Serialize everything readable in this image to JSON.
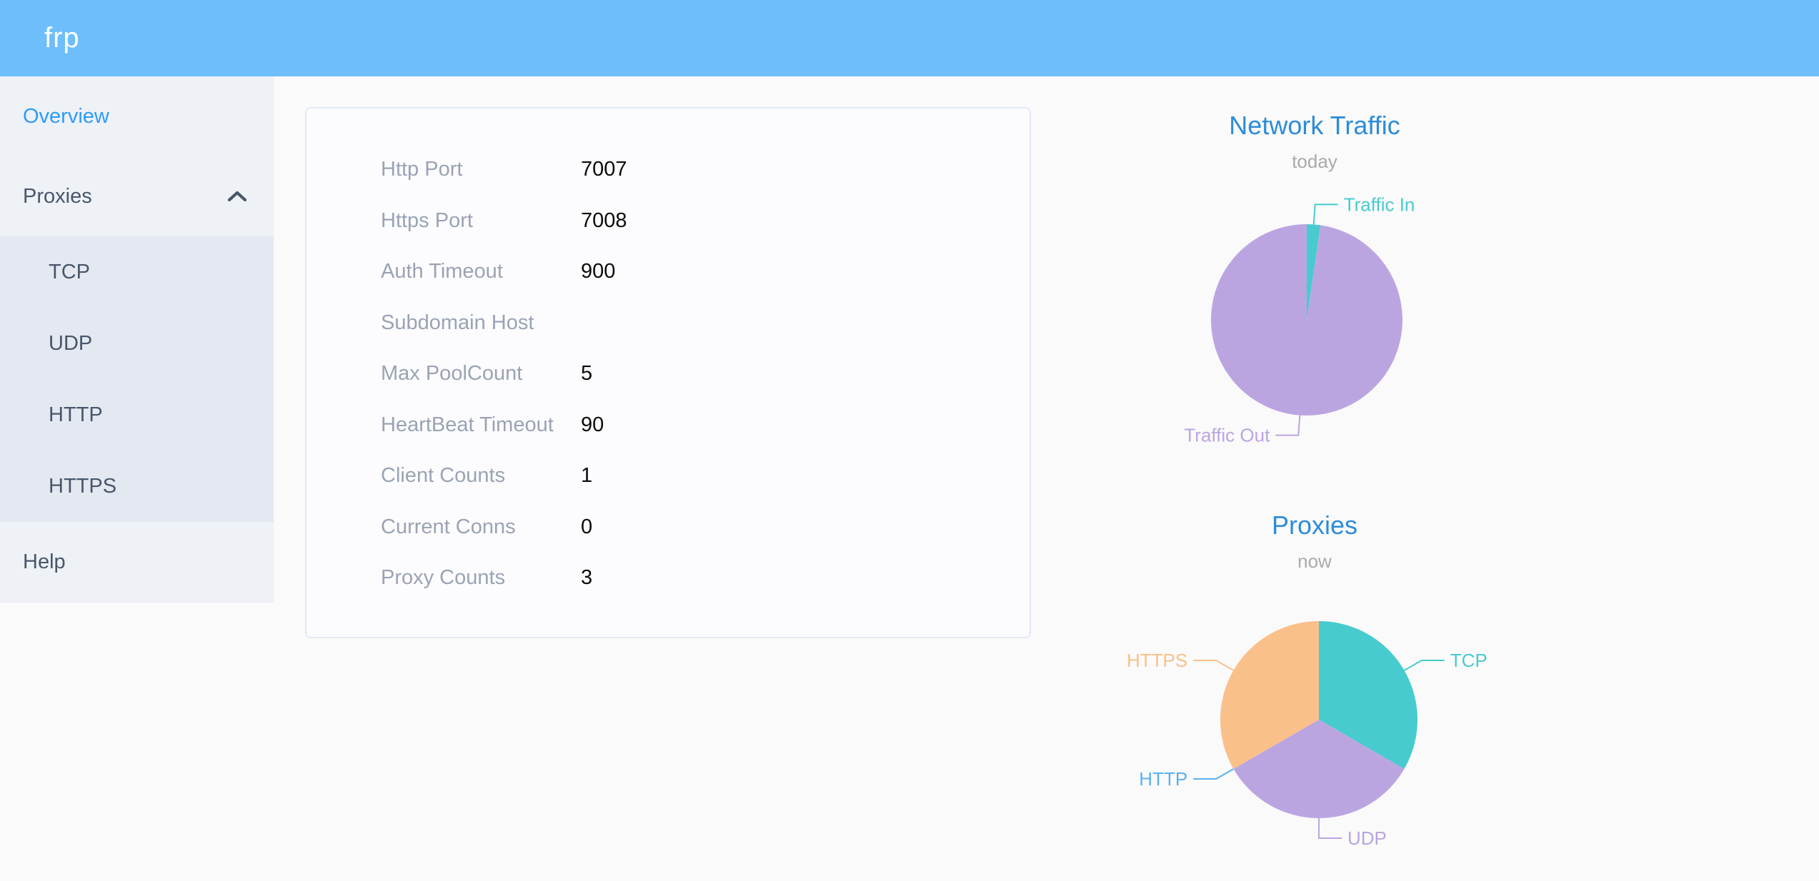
{
  "header": {
    "logo": "frp"
  },
  "sidebar": {
    "items": [
      {
        "label": "Overview",
        "active": true
      },
      {
        "label": "Proxies",
        "expanded": true,
        "children": [
          {
            "label": "TCP"
          },
          {
            "label": "UDP"
          },
          {
            "label": "HTTP"
          },
          {
            "label": "HTTPS"
          }
        ]
      },
      {
        "label": "Help"
      }
    ]
  },
  "overview": {
    "rows": [
      {
        "label": "Http Port",
        "value": "7007"
      },
      {
        "label": "Https Port",
        "value": "7008"
      },
      {
        "label": "Auth Timeout",
        "value": "900"
      },
      {
        "label": "Subdomain Host",
        "value": ""
      },
      {
        "label": "Max PoolCount",
        "value": "5"
      },
      {
        "label": "HeartBeat Timeout",
        "value": "90"
      },
      {
        "label": "Client Counts",
        "value": "1"
      },
      {
        "label": "Current Conns",
        "value": "0"
      },
      {
        "label": "Proxy Counts",
        "value": "3"
      }
    ]
  },
  "chart_data": [
    {
      "type": "pie",
      "title": "Network Traffic",
      "subtitle": "today",
      "unit": "% of total (estimated from slice angles)",
      "legend_position": "labels-on-chart",
      "series": [
        {
          "name": "Traffic In",
          "value": 2.3,
          "color": "#48cbce"
        },
        {
          "name": "Traffic Out",
          "value": 97.7,
          "color": "#bba5e1"
        }
      ]
    },
    {
      "type": "pie",
      "title": "Proxies",
      "subtitle": "now",
      "unit": "proxy count",
      "legend_position": "labels-on-chart",
      "series": [
        {
          "name": "TCP",
          "value": 1,
          "color": "#48cbce"
        },
        {
          "name": "UDP",
          "value": 1,
          "color": "#bba5e1"
        },
        {
          "name": "HTTP",
          "value": 0,
          "color": "#5ab1ef"
        },
        {
          "name": "HTTPS",
          "value": 1,
          "color": "#fac08a"
        }
      ]
    }
  ],
  "colors": {
    "header_bg": "#6ebefc",
    "sidebar_active_link": "#2d9cfa",
    "chart_title_blue": "#2d8cd8"
  }
}
